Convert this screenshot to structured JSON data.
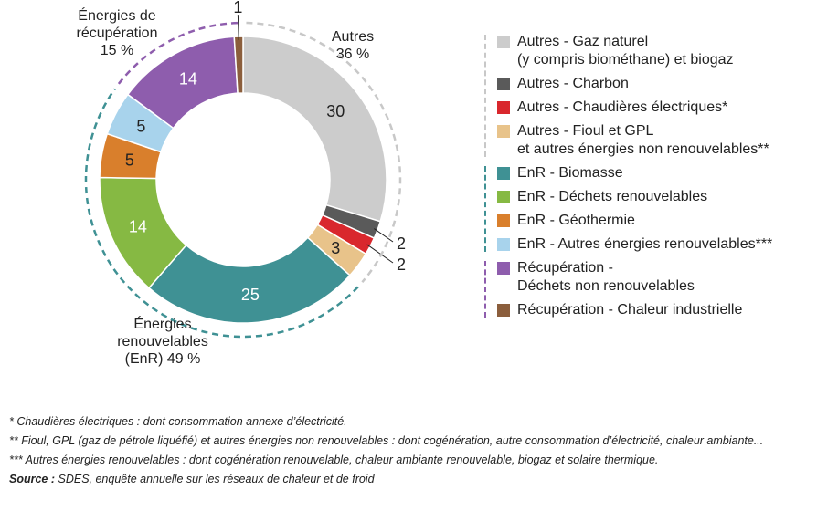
{
  "chart_data": {
    "type": "pie",
    "donut": true,
    "unit": "%",
    "slices": [
      {
        "key": "gaz",
        "value": 30,
        "color": "#cccccc",
        "label": "30",
        "label_color": "#222222"
      },
      {
        "key": "charbon",
        "value": 2,
        "color": "#5a5a5a",
        "label": "2",
        "label_color": "#222222"
      },
      {
        "key": "elec",
        "value": 2,
        "color": "#d9272d",
        "label": "2",
        "label_color": "#222222"
      },
      {
        "key": "fioul",
        "value": 3,
        "color": "#e8c38a",
        "label": "3",
        "label_color": "#222222"
      },
      {
        "key": "biomasse",
        "value": 25,
        "color": "#3f9194",
        "label": "25",
        "label_color": "#ffffff"
      },
      {
        "key": "dechets_renouv",
        "value": 14,
        "color": "#86b943",
        "label": "14",
        "label_color": "#ffffff"
      },
      {
        "key": "geothermie",
        "value": 5,
        "color": "#d97f2c",
        "label": "5",
        "label_color": "#222222"
      },
      {
        "key": "autres_enr",
        "value": 5,
        "color": "#a8d3ec",
        "label": "5",
        "label_color": "#222222"
      },
      {
        "key": "dechets_non_renouv",
        "value": 14,
        "color": "#8e5dad",
        "label": "14",
        "label_color": "#ffffff"
      },
      {
        "key": "chaleur_industrielle",
        "value": 1,
        "color": "#8b5e3c",
        "label": "1",
        "label_color": "#222222"
      }
    ],
    "groups": [
      {
        "key": "autres",
        "name_lines": [
          "Autres",
          "36 %"
        ],
        "color": "#c8c8c8",
        "from": 0,
        "to": 3
      },
      {
        "key": "enr",
        "name_lines": [
          "Énergies",
          "renouvelables",
          "(EnR) 49 %"
        ],
        "color": "#3f9194",
        "from": 4,
        "to": 7
      },
      {
        "key": "recup",
        "name_lines": [
          "Énergies de",
          "récupération",
          "15 %"
        ],
        "color": "#8e5dad",
        "from": 8,
        "to": 9
      }
    ]
  },
  "legend": {
    "groups": [
      {
        "line_color": "#c8c8c8",
        "items": [
          {
            "color": "#cccccc",
            "label": "Autres - Gaz naturel\n(y compris biométhane) et biogaz"
          },
          {
            "color": "#5a5a5a",
            "label": "Autres - Charbon"
          },
          {
            "color": "#d9272d",
            "label": "Autres - Chaudières électriques*"
          },
          {
            "color": "#e8c38a",
            "label": "Autres - Fioul et GPL\net autres énergies non renouvelables**"
          }
        ]
      },
      {
        "line_color": "#3f9194",
        "items": [
          {
            "color": "#3f9194",
            "label": "EnR - Biomasse"
          },
          {
            "color": "#86b943",
            "label": "EnR - Déchets renouvelables"
          },
          {
            "color": "#d97f2c",
            "label": "EnR - Géothermie"
          },
          {
            "color": "#a8d3ec",
            "label": "EnR - Autres énergies renouvelables***"
          }
        ]
      },
      {
        "line_color": "#8e5dad",
        "items": [
          {
            "color": "#8e5dad",
            "label": "Récupération -\nDéchets non renouvelables"
          },
          {
            "color": "#8b5e3c",
            "label": "Récupération - Chaleur industrielle"
          }
        ]
      }
    ]
  },
  "notes": {
    "n1": "* Chaudières électriques : dont consommation annexe d’électricité.",
    "n2": "** Fioul, GPL (gaz de pétrole liquéfié) et autres énergies non renouvelables : dont cogénération, autre consommation d’électricité, chaleur ambiante...",
    "n3": "*** Autres énergies renouvelables : dont cogénération renouvelable, chaleur ambiante renouvelable, biogaz et solaire thermique.",
    "source_label": "Source :",
    "source_text": " SDES, enquête annuelle sur les réseaux de chaleur et de froid"
  }
}
